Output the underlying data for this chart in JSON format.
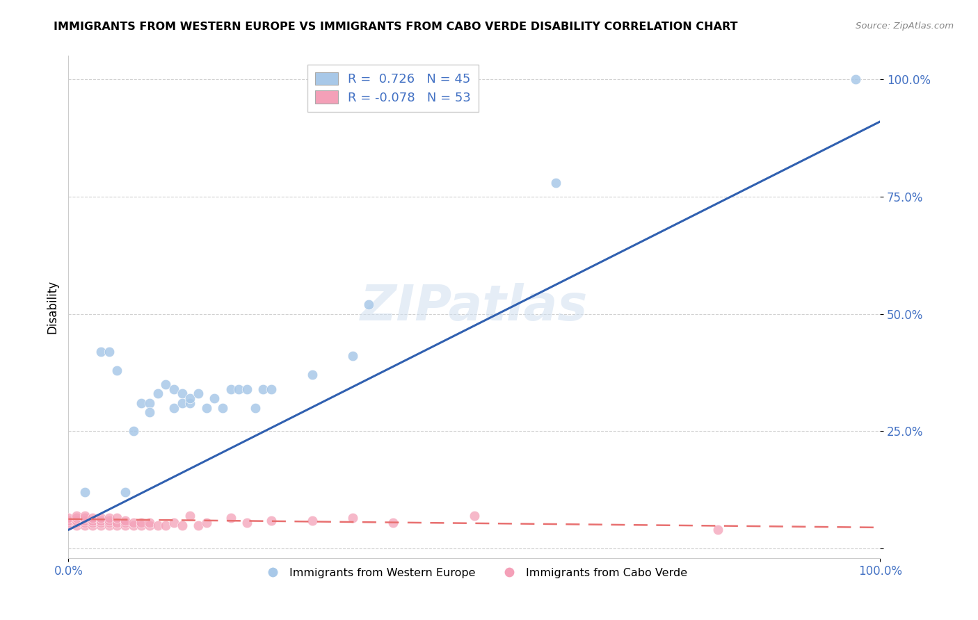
{
  "title": "IMMIGRANTS FROM WESTERN EUROPE VS IMMIGRANTS FROM CABO VERDE DISABILITY CORRELATION CHART",
  "source": "Source: ZipAtlas.com",
  "ylabel": "Disability",
  "xlim": [
    0,
    1
  ],
  "ylim": [
    -0.02,
    1.05
  ],
  "yticks": [
    0.0,
    0.25,
    0.5,
    0.75,
    1.0
  ],
  "ytick_labels": [
    "",
    "25.0%",
    "50.0%",
    "75.0%",
    "100.0%"
  ],
  "xtick_labels": [
    "0.0%",
    "100.0%"
  ],
  "blue_color": "#a8c8e8",
  "pink_color": "#f4a0b8",
  "blue_line_color": "#3060b0",
  "pink_line_color": "#e87070",
  "watermark": "ZIPatlas",
  "blue_scatter_x": [
    0.02,
    0.04,
    0.05,
    0.06,
    0.07,
    0.08,
    0.09,
    0.1,
    0.1,
    0.11,
    0.12,
    0.13,
    0.13,
    0.14,
    0.14,
    0.15,
    0.15,
    0.16,
    0.17,
    0.18,
    0.19,
    0.2,
    0.21,
    0.22,
    0.23,
    0.24,
    0.25,
    0.3,
    0.35,
    0.37,
    0.6,
    0.97
  ],
  "blue_scatter_y": [
    0.12,
    0.42,
    0.42,
    0.38,
    0.12,
    0.25,
    0.31,
    0.31,
    0.29,
    0.33,
    0.35,
    0.34,
    0.3,
    0.33,
    0.31,
    0.31,
    0.32,
    0.33,
    0.3,
    0.32,
    0.3,
    0.34,
    0.34,
    0.34,
    0.3,
    0.34,
    0.34,
    0.37,
    0.41,
    0.52,
    0.78,
    1.0
  ],
  "pink_scatter_x": [
    0.0,
    0.0,
    0.0,
    0.0,
    0.01,
    0.01,
    0.01,
    0.01,
    0.01,
    0.02,
    0.02,
    0.02,
    0.02,
    0.02,
    0.03,
    0.03,
    0.03,
    0.03,
    0.04,
    0.04,
    0.04,
    0.04,
    0.05,
    0.05,
    0.05,
    0.05,
    0.06,
    0.06,
    0.06,
    0.07,
    0.07,
    0.07,
    0.08,
    0.08,
    0.09,
    0.09,
    0.1,
    0.1,
    0.11,
    0.12,
    0.13,
    0.14,
    0.15,
    0.16,
    0.17,
    0.2,
    0.22,
    0.25,
    0.3,
    0.35,
    0.4,
    0.5,
    0.8
  ],
  "pink_scatter_y": [
    0.05,
    0.055,
    0.06,
    0.065,
    0.05,
    0.055,
    0.06,
    0.065,
    0.07,
    0.05,
    0.055,
    0.06,
    0.065,
    0.07,
    0.05,
    0.055,
    0.06,
    0.065,
    0.05,
    0.055,
    0.06,
    0.065,
    0.05,
    0.055,
    0.06,
    0.065,
    0.05,
    0.055,
    0.065,
    0.05,
    0.055,
    0.06,
    0.05,
    0.055,
    0.05,
    0.055,
    0.05,
    0.055,
    0.05,
    0.05,
    0.055,
    0.05,
    0.07,
    0.05,
    0.055,
    0.065,
    0.055,
    0.06,
    0.06,
    0.065,
    0.055,
    0.07,
    0.04
  ],
  "blue_line_x0": 0.0,
  "blue_line_y0": 0.04,
  "blue_line_x1": 1.0,
  "blue_line_y1": 0.91,
  "pink_line_x0": 0.0,
  "pink_line_y0": 0.063,
  "pink_line_x1": 1.0,
  "pink_line_y1": 0.045
}
